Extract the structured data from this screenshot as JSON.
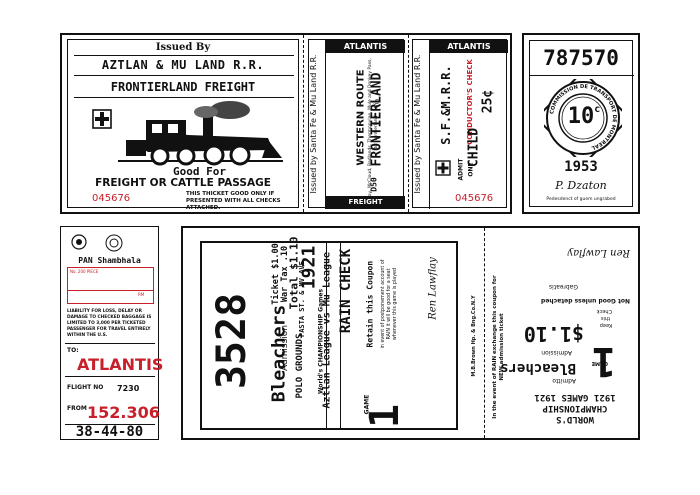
{
  "aztlan_ticket": {
    "issued_by": "Issued By",
    "railroad": "AZTLAN & MU LAND R.R.",
    "title": "FRONTIERLAND FREIGHT",
    "good_for": "Good For",
    "passage": "FREIGHT OR CATTLE PASSAGE",
    "serial": "045676",
    "notice": "THIS THICKET GOOD ONLY IF PRESENTED WITH ALL CHECKS ATTACHED."
  },
  "western_stub": {
    "issued_by_side": "Issued by Santa Fe & Mu Land R.R.",
    "header": "ATLANTIS",
    "route": "WESTERN ROUTE",
    "destination": "FRONTIERLAND",
    "via": "Via",
    "fine_print": "Fitzroy, McCloud, Badlands, Thermopylae, Mule and Donkey Pass, to Frontierland",
    "code": "D50",
    "footer": "FREIGHT"
  },
  "conductor_stub": {
    "issued_by_side": "Issued by Santa Fe & Mu Land R.R.",
    "header": "ATLANTIS",
    "railroad": "S.F.&M.R.R.",
    "check": "CONDUCTOR'S CHECK",
    "fare_label": "CHILD",
    "fare": "25¢",
    "admit": "ADMIT",
    "one": "ONE",
    "serial": "045676"
  },
  "transit_token": {
    "number": "787570",
    "ring_text": "COMMISSION DE TRANSPORT DE MONTREAL",
    "value": "10",
    "cents": "c",
    "year": "1953",
    "signature": "P. Dzaton",
    "footer": "Pedesdenct of guem ungrabed"
  },
  "baggage_tag": {
    "company": "PAN Shambhala",
    "field_no": "No. 200 PIECE",
    "field_rm": "RM",
    "liability": "LIABILITY FOR LOSS, DELAY OR DAMAGE TO CHECKED BAGGAGE IS LIMITED TO 3,000 PER TICKETED PASSENGER FOR TRAVEL ENTIRELY WITHIN THE U.S.",
    "to_label": "TO:",
    "to_value": "ATLANTIS",
    "flight_label": "FLIGHT NO",
    "flight_value": "7230",
    "from_label": "FROM",
    "from_value": "152.306",
    "bottom_code": "38-44-80"
  },
  "rain_check": {
    "number": "3528",
    "section": "Bleachers",
    "admission": "Admission",
    "ticket_price": "Ticket $1.00",
    "war_tax": "War Tax .10",
    "total": "Total $1.10",
    "venue": "POLO GROUNDS",
    "address": "PASTA ST. & MV AVE.",
    "year": "1921",
    "series": "World's CHAMPIONSHIP Games",
    "teams": "Aztlan League vs Mu League",
    "rain_check": "RAIN CHECK",
    "retain": "Retain this Coupon",
    "retain_fine": "in event of postponement account of RAIN it will be good for a seat whenever this game is played",
    "signature": "Ren Lawflay",
    "game_label": "GAME",
    "game_number": "1",
    "printer": "M.B.Brown Hp. & Bng.Co.N.Y"
  },
  "stub_inverted": {
    "line1": "WORLD'S",
    "line2": "CHAMPIONSHIP",
    "line3": "1921 GAMES 1921",
    "admit": "Admitto",
    "section": "Bleachers",
    "admission": "Admission",
    "price": "$1.10",
    "game_label": "GAME",
    "game_number": "1",
    "keep": "Keep",
    "this": "this",
    "check": "Check",
    "not_good": "Not Good unless detached",
    "place": "Gabreatis",
    "signature": "Ren Lawflay",
    "exchange": "In the event of RAIN exchange this coupon for NEW admission ticket"
  }
}
